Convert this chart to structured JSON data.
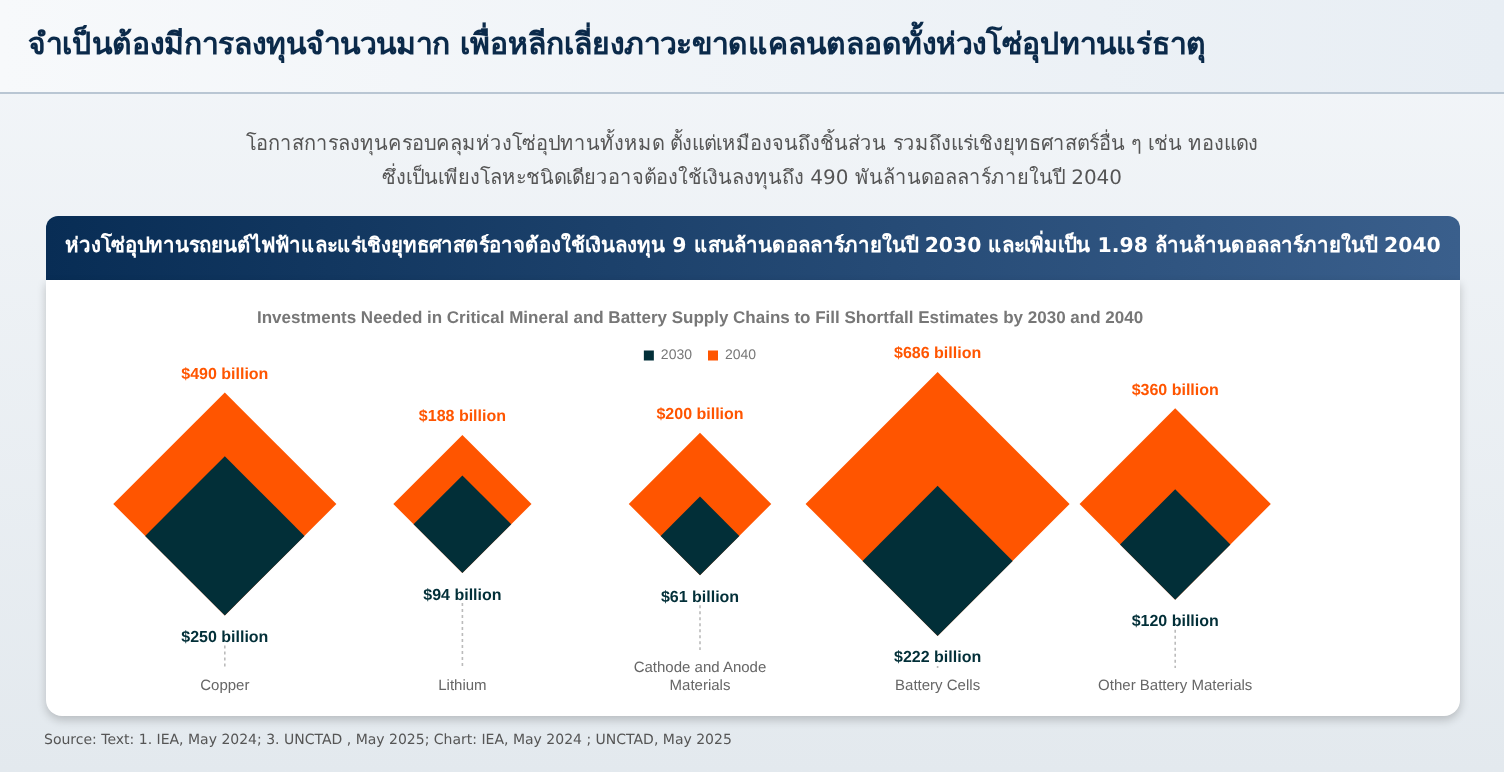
{
  "chart_data": {
    "type": "other",
    "title": "Investments Needed in Critical Mineral and Battery Supply Chains to Fill Shortfall Estimates by 2030 and 2040",
    "annotations": [
      "จำเป็นต้องมีการลงทุนจำนวนมาก เพื่อหลีกเลี่ยงภาวะขาดแคลนตลอดทั้งห่วงโซ่อุปทานแร่ธาตุ",
      "โอกาสการลงทุนครอบคลุมห่วงโซ่อุปทานทั้งหมด ตั้งแต่เหมืองจนถึงชิ้นส่วน รวมถึงแร่เชิงยุทธศาสตร์อื่น ๆ เช่น ทองแดง",
      "ซึ่งเป็นเพียงโลหะชนิดเดียวอาจต้องใช้เงินลงทุนถึง 490 พันล้านดอลลาร์ภายในปี 2040",
      "ห่วงโซ่อุปทานรถยนต์ไฟฟ้าและแร่เชิงยุทธศาสตร์อาจต้องใช้เงินลงทุน 9 แสนล้านดอลลาร์ภายในปี 2030 และเพิ่มเป็น 1.98 ล้านล้านดอลลาร์ภายในปี 2040",
      "Source: Text: 1. IEA, May 2024; 3. UNCTAD , May 2025; Chart: IEA, May 2024 ; UNCTAD, May 2025"
    ],
    "categories": [
      "Copper",
      "Lithium",
      "Cathode and Anode Materials",
      "Battery Cells",
      "Other Battery Materials"
    ],
    "series": [
      {
        "name": "2030",
        "color": "#022f38",
        "values": [
          250,
          94,
          61,
          222,
          120
        ],
        "value_labels": [
          "$250 billion",
          "$94 billion",
          "$61 billion",
          "$222 billion",
          "$120 billion"
        ]
      },
      {
        "name": "2040",
        "color": "#ff5500",
        "values": [
          490,
          188,
          200,
          686,
          360
        ],
        "value_labels": [
          "$490 billion",
          "$188 billion",
          "$200 billion",
          "$686 billion",
          "$360 billion"
        ]
      }
    ],
    "legend": "top"
  }
}
